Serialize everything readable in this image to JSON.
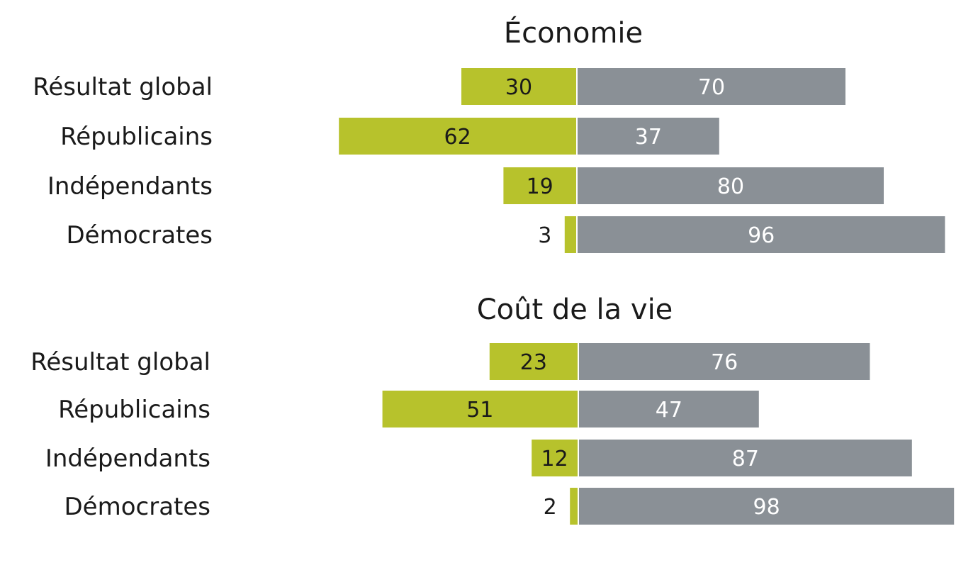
{
  "chart_data": [
    {
      "type": "bar",
      "orientation": "horizontal-diverging",
      "title": "Économie",
      "categories": [
        "Résultat global",
        "Républicains",
        "Indépendants",
        "Démocrates"
      ],
      "series": [
        {
          "values": [
            30,
            62,
            19,
            3
          ],
          "color": "#b7c22c"
        },
        {
          "values": [
            70,
            37,
            80,
            96
          ],
          "color": "#8a9096"
        }
      ],
      "xlim": [
        -70,
        100
      ],
      "grid": false,
      "legend": "none"
    },
    {
      "type": "bar",
      "orientation": "horizontal-diverging",
      "title": "Coût de la vie",
      "categories": [
        "Résultat global",
        "Républicains",
        "Indépendants",
        "Démocrates"
      ],
      "series": [
        {
          "values": [
            23,
            51,
            12,
            2
          ],
          "color": "#b7c22c"
        },
        {
          "values": [
            76,
            47,
            87,
            98
          ],
          "color": "#8a9096"
        }
      ],
      "xlim": [
        -70,
        100
      ],
      "grid": false,
      "legend": "none"
    }
  ]
}
